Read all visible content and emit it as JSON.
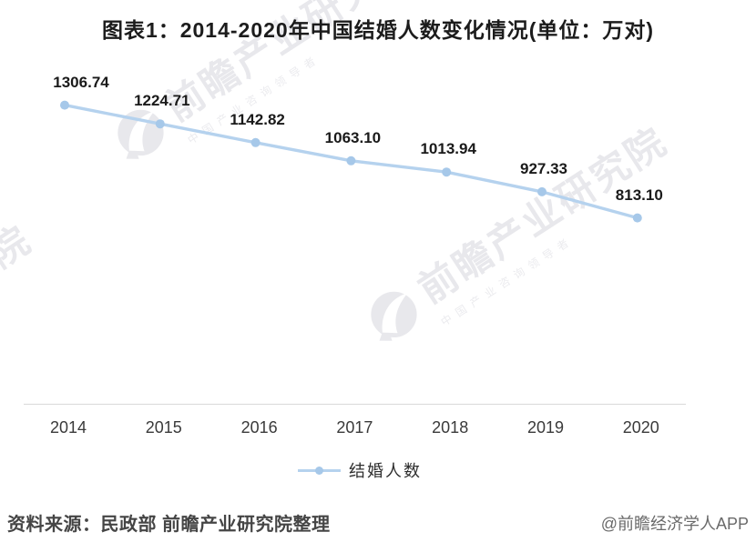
{
  "title": "图表1：2014-2020年中国结婚人数变化情况(单位：万对)",
  "chart_data": {
    "type": "line",
    "title": "图表1：2014-2020年中国结婚人数变化情况",
    "unit": "万对",
    "categories": [
      "2014",
      "2015",
      "2016",
      "2017",
      "2018",
      "2019",
      "2020"
    ],
    "series": [
      {
        "name": "结婚人数",
        "values": [
          1306.74,
          1224.71,
          1142.82,
          1063.1,
          1013.94,
          927.33,
          813.1
        ]
      }
    ],
    "data_labels": [
      "1306.74",
      "1224.71",
      "1142.82",
      "1063.10",
      "1013.94",
      "927.33",
      "813.10"
    ],
    "xlabel": "",
    "ylabel": "",
    "ylim": [
      0,
      1488
    ],
    "grid": false,
    "legend_position": "bottom",
    "line_color": "#b5d2ee",
    "point_color": "#a6c8e9",
    "axis_color": "#d9d9d9",
    "label_color": "#1a1a1a"
  },
  "legend": {
    "label": "结婚人数"
  },
  "watermark": {
    "text": "前瞻产业研究院",
    "subtext": "中国产业咨询领导者",
    "color": "#e8e8ec"
  },
  "footer": {
    "source": "资料来源：民政部 前瞻产业研究院整理",
    "attribution": "@前瞻经济学人APP"
  }
}
